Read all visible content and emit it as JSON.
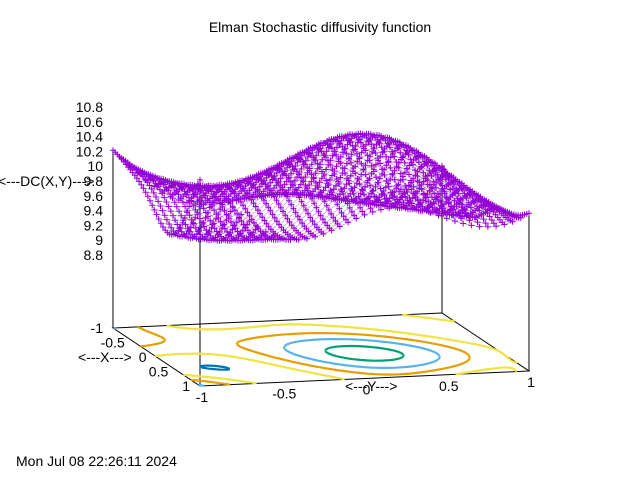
{
  "chart_data": {
    "type": "surface3d",
    "title": "Elman Stochastic diffusivity function",
    "xlabel": "<---X--->",
    "ylabel": "<---Y--->",
    "zlabel": "<---DC(X,Y)--->",
    "xlim": [
      -1,
      1
    ],
    "ylim": [
      -1,
      1
    ],
    "zlim": [
      8.8,
      10.8
    ],
    "x_ticks": [
      "-1",
      "-0.5",
      "0",
      "0.5",
      "1"
    ],
    "y_ticks": [
      "-1",
      "-0.5",
      "0",
      "0.5",
      "1"
    ],
    "z_ticks": [
      "8.8",
      "9",
      "9.2",
      "9.4",
      "9.6",
      "9.8",
      "10",
      "10.2",
      "10.4",
      "10.6",
      "10.8"
    ],
    "grid_points": 41,
    "surface_color": "#9400d3",
    "contour_colors": [
      "#009e73",
      "#56b4e9",
      "#e69f00",
      "#f0e442",
      "#0072b2",
      "#e51e10",
      "#000000"
    ],
    "contour_levels": [
      10.5,
      10.2,
      9.9,
      9.6,
      9.3,
      9.0,
      8.8
    ]
  },
  "timestamp": "Mon Jul 08 22:26:11 2024"
}
